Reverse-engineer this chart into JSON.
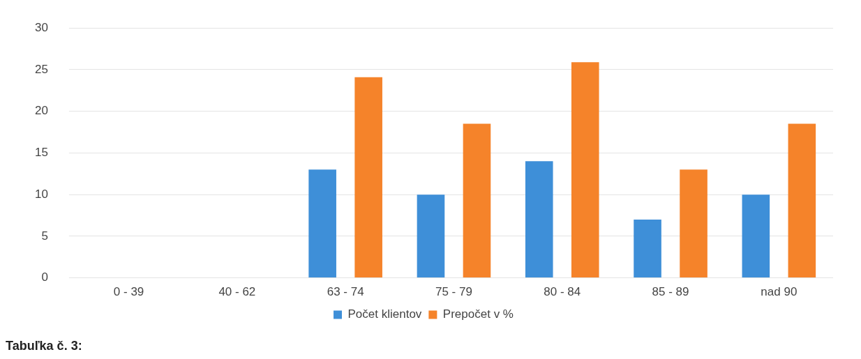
{
  "chart_data": {
    "type": "bar",
    "categories": [
      "0 - 39",
      "40 - 62",
      "63 - 74",
      "75 - 79",
      "80 - 84",
      "85 - 89",
      "nad 90"
    ],
    "series": [
      {
        "name": "Počet klientov",
        "color": "#3e8fd8",
        "values": [
          0,
          0,
          13,
          10,
          14,
          7,
          10
        ]
      },
      {
        "name": "Prepočet v %",
        "color": "#f5832a",
        "values": [
          0,
          0,
          24.1,
          18.5,
          25.9,
          13,
          18.5
        ]
      }
    ],
    "ylim": [
      0,
      30
    ],
    "yticks": [
      0,
      5,
      10,
      15,
      20,
      25,
      30
    ],
    "grid": "y",
    "legend": "bottom",
    "annotations": [
      "Tabuľka č. 3:"
    ]
  }
}
